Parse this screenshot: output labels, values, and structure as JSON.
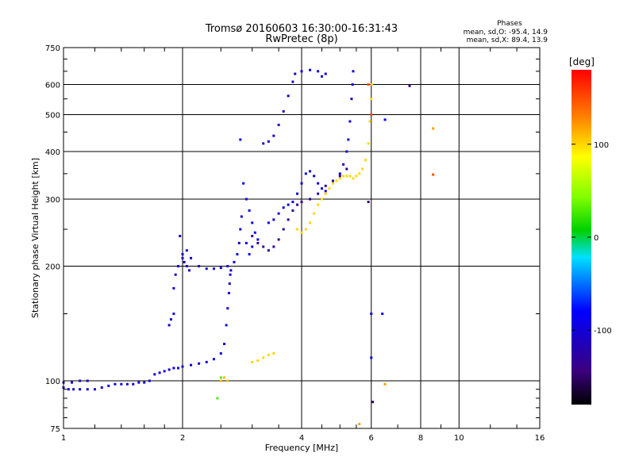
{
  "chart_data": {
    "type": "scatter",
    "title": "Tromsø 20160603 16:30:00-16:31:43",
    "subtitle": "RwPretec (8p)",
    "xlabel": "Frequency [MHz]",
    "ylabel": "Stationary phase Virtual Height [km]",
    "x_scale": "log",
    "y_scale": "log",
    "xlim": [
      1,
      16
    ],
    "ylim": [
      75,
      750
    ],
    "x_ticks": [
      1,
      2,
      4,
      6,
      8,
      10,
      16
    ],
    "y_ticks": [
      75,
      100,
      200,
      300,
      400,
      500,
      600,
      750
    ],
    "grid": true,
    "annotation": {
      "title": "Phases",
      "line1": "mean, sd,O: -95.4, 14.9",
      "line2": "mean, sd,X:  89.4, 13.9"
    },
    "colorbar": {
      "label": "[deg]",
      "range": [
        -180,
        180
      ],
      "ticks": [
        {
          "value": 100,
          "label": "100"
        },
        {
          "value": 0,
          "label": "0"
        },
        {
          "value": -100,
          "label": "-100"
        }
      ]
    },
    "series": [
      {
        "phase": -100,
        "points": [
          [
            1.0,
            96
          ],
          [
            1.03,
            95
          ],
          [
            1.06,
            95
          ],
          [
            1.1,
            95
          ],
          [
            1.15,
            95
          ],
          [
            1.2,
            95
          ],
          [
            1.25,
            96
          ],
          [
            1.3,
            97
          ],
          [
            1.35,
            98
          ],
          [
            1.4,
            98
          ],
          [
            1.45,
            98
          ],
          [
            1.5,
            98
          ],
          [
            1.55,
            99
          ],
          [
            1.6,
            99
          ],
          [
            1.65,
            100
          ],
          [
            1.7,
            104
          ],
          [
            1.75,
            105
          ],
          [
            1.8,
            106
          ],
          [
            1.85,
            107
          ],
          [
            1.9,
            108
          ],
          [
            1.95,
            108
          ],
          [
            2.0,
            109
          ],
          [
            2.1,
            110
          ],
          [
            2.2,
            111
          ],
          [
            2.3,
            112
          ],
          [
            2.4,
            114
          ],
          [
            2.5,
            118
          ],
          [
            2.55,
            125
          ],
          [
            2.58,
            140
          ],
          [
            2.6,
            155
          ],
          [
            2.62,
            170
          ],
          [
            2.63,
            180
          ],
          [
            2.64,
            190
          ],
          [
            2.65,
            195
          ]
        ]
      },
      {
        "phase": -100,
        "points": [
          [
            1.0,
            99
          ],
          [
            1.05,
            99
          ],
          [
            1.1,
            100
          ],
          [
            1.15,
            100
          ]
        ]
      },
      {
        "phase": -100,
        "points": [
          [
            1.85,
            140
          ],
          [
            1.87,
            145
          ],
          [
            1.9,
            150
          ],
          [
            1.9,
            175
          ],
          [
            1.92,
            190
          ],
          [
            1.95,
            200
          ],
          [
            2.0,
            210
          ],
          [
            2.05,
            220
          ],
          [
            2.1,
            210
          ],
          [
            2.2,
            200
          ],
          [
            2.3,
            197
          ],
          [
            2.4,
            197
          ],
          [
            2.5,
            198
          ],
          [
            2.6,
            200
          ],
          [
            2.7,
            205
          ],
          [
            2.75,
            215
          ],
          [
            2.78,
            230
          ],
          [
            2.8,
            250
          ],
          [
            2.82,
            270
          ]
        ]
      },
      {
        "phase": -110,
        "points": [
          [
            1.97,
            240
          ],
          [
            2.0,
            215
          ],
          [
            2.02,
            205
          ],
          [
            2.05,
            200
          ],
          [
            2.08,
            195
          ]
        ]
      },
      {
        "phase": -90,
        "points": [
          [
            2.8,
            430
          ],
          [
            2.85,
            330
          ],
          [
            2.9,
            300
          ],
          [
            2.95,
            280
          ],
          [
            3.0,
            260
          ],
          [
            3.05,
            245
          ],
          [
            3.1,
            235
          ],
          [
            3.0,
            225
          ],
          [
            2.95,
            215
          ],
          [
            2.9,
            230
          ]
        ]
      },
      {
        "phase": -130,
        "points": [
          [
            3.0,
            240
          ],
          [
            3.1,
            230
          ],
          [
            3.2,
            225
          ],
          [
            3.3,
            220
          ],
          [
            3.4,
            225
          ],
          [
            3.5,
            235
          ],
          [
            3.6,
            250
          ],
          [
            3.7,
            265
          ],
          [
            3.8,
            280
          ],
          [
            3.9,
            290
          ],
          [
            4.0,
            295
          ],
          [
            4.2,
            300
          ],
          [
            4.4,
            310
          ],
          [
            4.6,
            325
          ],
          [
            4.8,
            335
          ],
          [
            5.0,
            345
          ],
          [
            5.2,
            360
          ]
        ]
      },
      {
        "phase": -100,
        "points": [
          [
            3.3,
            260
          ],
          [
            3.4,
            265
          ],
          [
            3.5,
            275
          ],
          [
            3.6,
            285
          ],
          [
            3.7,
            290
          ],
          [
            3.8,
            295
          ],
          [
            3.9,
            310
          ],
          [
            4.0,
            330
          ],
          [
            4.1,
            350
          ],
          [
            4.2,
            355
          ],
          [
            4.3,
            345
          ],
          [
            4.4,
            330
          ],
          [
            4.5,
            320
          ],
          [
            4.6,
            315
          ]
        ]
      },
      {
        "phase": -110,
        "points": [
          [
            3.2,
            420
          ],
          [
            3.3,
            425
          ],
          [
            3.4,
            440
          ],
          [
            3.5,
            470
          ],
          [
            3.6,
            510
          ],
          [
            3.7,
            560
          ],
          [
            3.8,
            610
          ],
          [
            3.85,
            640
          ]
        ]
      },
      {
        "phase": -100,
        "points": [
          [
            4.0,
            650
          ],
          [
            4.2,
            655
          ],
          [
            4.4,
            650
          ],
          [
            4.6,
            640
          ],
          [
            4.5,
            630
          ]
        ]
      },
      {
        "phase": -100,
        "points": [
          [
            5.0,
            350
          ],
          [
            5.1,
            370
          ],
          [
            5.2,
            400
          ],
          [
            5.25,
            430
          ],
          [
            5.3,
            480
          ],
          [
            5.35,
            550
          ],
          [
            5.38,
            600
          ],
          [
            5.4,
            650
          ]
        ]
      },
      {
        "phase": 100,
        "points": [
          [
            3.9,
            250
          ],
          [
            4.0,
            245
          ],
          [
            4.1,
            250
          ],
          [
            4.2,
            260
          ],
          [
            4.3,
            275
          ],
          [
            4.4,
            290
          ],
          [
            4.5,
            300
          ],
          [
            4.6,
            310
          ],
          [
            4.7,
            320
          ],
          [
            4.8,
            330
          ],
          [
            4.9,
            335
          ],
          [
            5.0,
            340
          ],
          [
            5.1,
            345
          ],
          [
            5.2,
            345
          ],
          [
            5.3,
            345
          ],
          [
            5.4,
            340
          ],
          [
            5.5,
            345
          ],
          [
            5.6,
            350
          ],
          [
            5.7,
            360
          ],
          [
            5.8,
            380
          ],
          [
            5.9,
            420
          ],
          [
            5.95,
            480
          ],
          [
            6.0,
            550
          ],
          [
            6.02,
            600
          ]
        ]
      },
      {
        "phase": 100,
        "points": [
          [
            3.0,
            112
          ],
          [
            3.1,
            113
          ],
          [
            3.2,
            115
          ],
          [
            3.3,
            117
          ],
          [
            3.4,
            118
          ]
        ]
      },
      {
        "phase": 110,
        "points": [
          [
            2.5,
            100
          ],
          [
            2.55,
            102
          ],
          [
            2.6,
            100
          ]
        ]
      },
      {
        "phase": 30,
        "points": [
          [
            2.5,
            102
          ],
          [
            2.45,
            90
          ]
        ]
      },
      {
        "phase": -90,
        "points": [
          [
            6.0,
            150
          ],
          [
            6.0,
            115
          ],
          [
            6.4,
            150
          ],
          [
            6.5,
            485
          ]
        ]
      },
      {
        "phase": 120,
        "points": [
          [
            6.5,
            98
          ],
          [
            8.6,
            460
          ],
          [
            5.6,
            77
          ]
        ]
      },
      {
        "phase": 150,
        "points": [
          [
            8.6,
            348
          ],
          [
            5.9,
            600
          ],
          [
            6.0,
            500
          ]
        ]
      },
      {
        "phase": -150,
        "points": [
          [
            6.05,
            88
          ],
          [
            5.9,
            295
          ],
          [
            7.5,
            595
          ]
        ]
      }
    ]
  }
}
